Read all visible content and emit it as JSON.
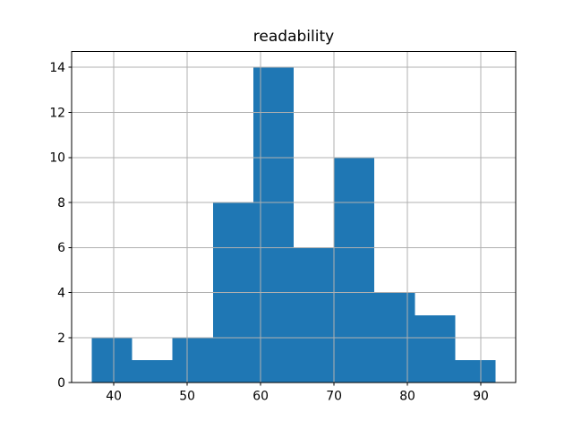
{
  "page": {
    "background": "#ffffff"
  },
  "chart_data": {
    "type": "bar",
    "subtype": "histogram",
    "title": "readability",
    "xlabel": "",
    "ylabel": "",
    "bin_edges": [
      37,
      42.5,
      48,
      53.5,
      59,
      64.5,
      70,
      75.5,
      81,
      86.5,
      92
    ],
    "counts": [
      2,
      1,
      2,
      8,
      14,
      6,
      10,
      4,
      3,
      1
    ],
    "total_count": 51,
    "x_ticks": [
      40,
      50,
      60,
      70,
      80,
      90
    ],
    "y_ticks": [
      0,
      2,
      4,
      6,
      8,
      10,
      12,
      14
    ],
    "xlim": [
      34.25,
      94.75
    ],
    "ylim": [
      0,
      14.7
    ],
    "grid": true,
    "grid_layer": "above-bars",
    "legend_position": "none",
    "bar_color": "#1f77b4",
    "grid_color": "#b0b0b0",
    "axis_color": "#000000",
    "text_color": "#000000"
  }
}
